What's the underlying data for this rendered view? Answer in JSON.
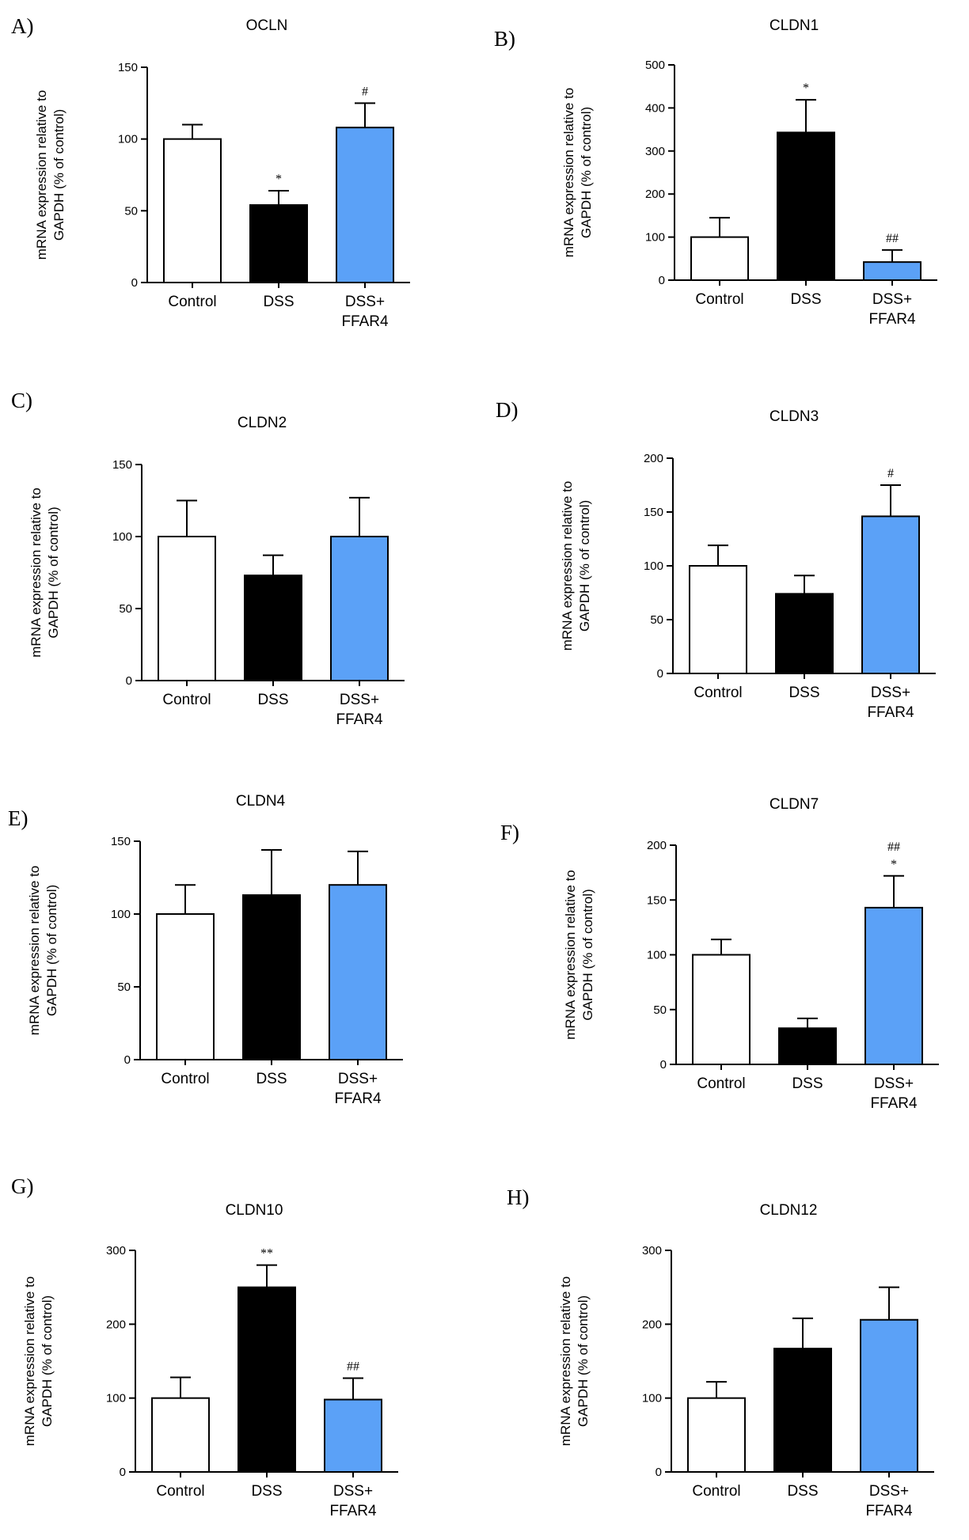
{
  "chart_data": [
    {
      "panel": "A)",
      "type": "bar",
      "title": "OCLN",
      "ylabel": [
        "mRNA expression relative to",
        "GAPDH (% of control)"
      ],
      "ylim": [
        0,
        150
      ],
      "yticks": [
        0,
        50,
        100,
        150
      ],
      "categories": [
        [
          "Control"
        ],
        [
          "DSS"
        ],
        [
          "DSS+",
          "FFAR4"
        ]
      ],
      "values": [
        100,
        54,
        108
      ],
      "errors": [
        10,
        10,
        17
      ],
      "annotations": [
        [],
        [
          "*"
        ],
        [
          "#"
        ]
      ],
      "colors": [
        "#ffffff",
        "#000000",
        "#5ba1f7"
      ]
    },
    {
      "panel": "B)",
      "type": "bar",
      "title": "CLDN1",
      "ylabel": [
        "mRNA expression relative to",
        "GAPDH (% of control)"
      ],
      "ylim": [
        0,
        500
      ],
      "yticks": [
        0,
        100,
        200,
        300,
        400,
        500
      ],
      "categories": [
        [
          "Control"
        ],
        [
          "DSS"
        ],
        [
          "DSS+",
          "FFAR4"
        ]
      ],
      "values": [
        100,
        343,
        42
      ],
      "errors": [
        45,
        76,
        28
      ],
      "annotations": [
        [],
        [
          "*"
        ],
        [
          "##"
        ]
      ],
      "colors": [
        "#ffffff",
        "#000000",
        "#5ba1f7"
      ]
    },
    {
      "panel": "C)",
      "type": "bar",
      "title": "CLDN2",
      "ylabel": [
        "mRNA expression relative to",
        "GAPDH (% of control)"
      ],
      "ylim": [
        0,
        150
      ],
      "yticks": [
        0,
        50,
        100,
        150
      ],
      "categories": [
        [
          "Control"
        ],
        [
          "DSS"
        ],
        [
          "DSS+",
          "FFAR4"
        ]
      ],
      "values": [
        100,
        73,
        100
      ],
      "errors": [
        25,
        14,
        27
      ],
      "annotations": [
        [],
        [],
        []
      ],
      "colors": [
        "#ffffff",
        "#000000",
        "#5ba1f7"
      ]
    },
    {
      "panel": "D)",
      "type": "bar",
      "title": "CLDN3",
      "ylabel": [
        "mRNA expression relative to",
        "GAPDH (% of control)"
      ],
      "ylim": [
        0,
        200
      ],
      "yticks": [
        0,
        50,
        100,
        150,
        200
      ],
      "categories": [
        [
          "Control"
        ],
        [
          "DSS"
        ],
        [
          "DSS+",
          "FFAR4"
        ]
      ],
      "values": [
        100,
        74,
        146
      ],
      "errors": [
        19,
        17,
        29
      ],
      "annotations": [
        [],
        [],
        [
          "#"
        ]
      ],
      "colors": [
        "#ffffff",
        "#000000",
        "#5ba1f7"
      ]
    },
    {
      "panel": "E)",
      "type": "bar",
      "title": "CLDN4",
      "ylabel": [
        "mRNA expression relative to",
        "GAPDH (% of control)"
      ],
      "ylim": [
        0,
        150
      ],
      "yticks": [
        0,
        50,
        100,
        150
      ],
      "categories": [
        [
          "Control"
        ],
        [
          "DSS"
        ],
        [
          "DSS+",
          "FFAR4"
        ]
      ],
      "values": [
        100,
        113,
        120
      ],
      "errors": [
        20,
        31,
        23
      ],
      "annotations": [
        [],
        [],
        []
      ],
      "colors": [
        "#ffffff",
        "#000000",
        "#5ba1f7"
      ]
    },
    {
      "panel": "F)",
      "type": "bar",
      "title": "CLDN7",
      "ylabel": [
        "mRNA expression relative to",
        "GAPDH (% of control)"
      ],
      "ylim": [
        0,
        200
      ],
      "yticks": [
        0,
        50,
        100,
        150,
        200
      ],
      "categories": [
        [
          "Control"
        ],
        [
          "DSS"
        ],
        [
          "DSS+",
          "FFAR4"
        ]
      ],
      "values": [
        100,
        33,
        143
      ],
      "errors": [
        14,
        9,
        29
      ],
      "annotations": [
        [],
        [],
        [
          "##",
          "*"
        ]
      ],
      "colors": [
        "#ffffff",
        "#000000",
        "#5ba1f7"
      ]
    },
    {
      "panel": "G)",
      "type": "bar",
      "title": "CLDN10",
      "ylabel": [
        "mRNA expression relative to",
        "GAPDH (% of control)"
      ],
      "ylim": [
        0,
        300
      ],
      "yticks": [
        0,
        100,
        200,
        300
      ],
      "categories": [
        [
          "Control"
        ],
        [
          "DSS"
        ],
        [
          "DSS+",
          "FFAR4"
        ]
      ],
      "values": [
        100,
        250,
        98
      ],
      "errors": [
        28,
        30,
        29
      ],
      "annotations": [
        [],
        [
          "**"
        ],
        [
          "##"
        ]
      ],
      "colors": [
        "#ffffff",
        "#000000",
        "#5ba1f7"
      ]
    },
    {
      "panel": "H)",
      "type": "bar",
      "title": "CLDN12",
      "ylabel": [
        "mRNA expression relative to",
        "GAPDH (% of control)"
      ],
      "ylim": [
        0,
        300
      ],
      "yticks": [
        0,
        100,
        200,
        300
      ],
      "categories": [
        [
          "Control"
        ],
        [
          "DSS"
        ],
        [
          "DSS+",
          "FFAR4"
        ]
      ],
      "values": [
        100,
        167,
        206
      ],
      "errors": [
        22,
        41,
        44
      ],
      "annotations": [
        [],
        [],
        []
      ],
      "colors": [
        "#ffffff",
        "#000000",
        "#5ba1f7"
      ]
    }
  ]
}
